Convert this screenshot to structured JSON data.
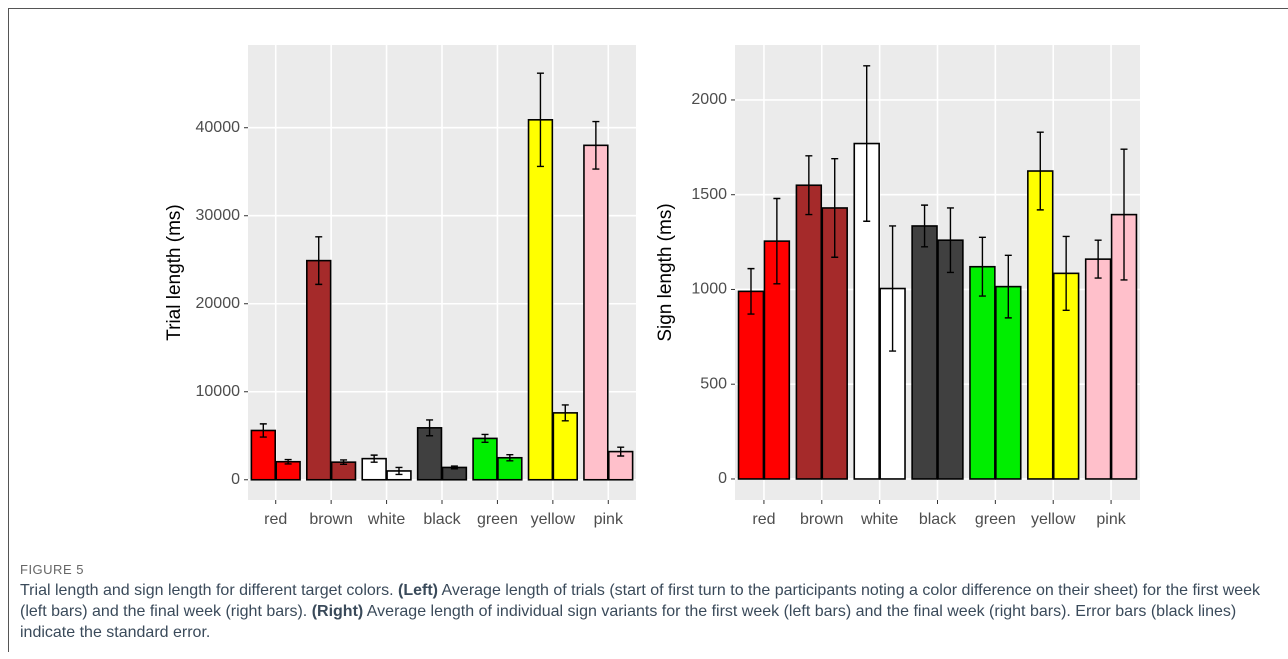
{
  "figure_label": "FIGURE 5",
  "caption": [
    {
      "text": "Trial length and sign length for different target colors. ",
      "bold": false
    },
    {
      "text": "(Left)",
      "bold": true
    },
    {
      "text": " Average length of trials (start of first turn to the participants noting a color difference on their sheet) for the first week (left bars) and the final week (right bars). ",
      "bold": false
    },
    {
      "text": "(Right)",
      "bold": true
    },
    {
      "text": " Average length of individual sign variants for the first week (left bars) and the final week (right bars). Error bars (black lines) indicate the standard error.",
      "bold": false
    }
  ],
  "chart_data": [
    {
      "type": "bar",
      "y_label": "Trial length (ms)",
      "categories": [
        "red",
        "brown",
        "white",
        "black",
        "green",
        "yellow",
        "pink"
      ],
      "colors": [
        "#ff0000",
        "#a52a2a",
        "#ffffff",
        "#404040",
        "#00ee00",
        "#ffff00",
        "#ffc0cb"
      ],
      "series": [
        {
          "values": [
            5600,
            24900,
            2400,
            5900,
            4700,
            40900,
            38000
          ],
          "errors": [
            750,
            2700,
            400,
            900,
            450,
            5300,
            2700
          ]
        },
        {
          "values": [
            2050,
            2000,
            1000,
            1400,
            2500,
            7600,
            3200
          ],
          "errors": [
            250,
            250,
            400,
            150,
            350,
            900,
            500
          ]
        }
      ],
      "ylim": [
        -2300,
        49400
      ],
      "yticks": [
        0,
        10000,
        20000,
        30000,
        40000
      ],
      "grid": true
    },
    {
      "type": "bar",
      "y_label": "Sign length (ms)",
      "categories": [
        "red",
        "brown",
        "white",
        "black",
        "green",
        "yellow",
        "pink"
      ],
      "colors": [
        "#ff0000",
        "#a52a2a",
        "#ffffff",
        "#404040",
        "#00ee00",
        "#ffff00",
        "#ffc0cb"
      ],
      "series": [
        {
          "values": [
            990,
            1550,
            1770,
            1335,
            1120,
            1625,
            1160
          ],
          "errors": [
            120,
            155,
            410,
            110,
            155,
            205,
            100
          ]
        },
        {
          "values": [
            1255,
            1430,
            1005,
            1260,
            1015,
            1085,
            1395
          ],
          "errors": [
            225,
            260,
            330,
            170,
            165,
            195,
            345
          ]
        }
      ],
      "ylim": [
        -111,
        2290
      ],
      "yticks": [
        0,
        500,
        1000,
        1500,
        2000
      ],
      "grid": true
    }
  ]
}
